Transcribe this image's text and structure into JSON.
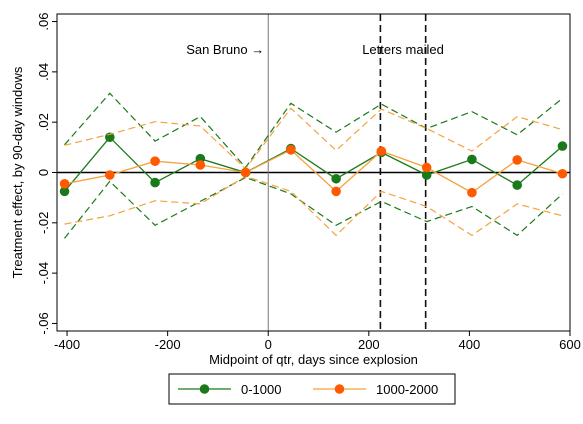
{
  "chart_data": {
    "type": "line",
    "xlabel": "Midpoint of qtr, days since explosion",
    "ylabel": "Treatment effect, by 90-day windows",
    "xlim": [
      -420,
      600
    ],
    "ylim": [
      -0.063,
      0.063
    ],
    "xticks": [
      -400,
      -200,
      0,
      200,
      400,
      600
    ],
    "xtick_labels": [
      "-400",
      "-200",
      "0",
      "200",
      "400",
      "600"
    ],
    "yticks": [
      -0.06,
      -0.04,
      -0.02,
      0,
      0.02,
      0.04,
      0.06
    ],
    "ytick_labels": [
      "-.06",
      "-.04",
      "-.02",
      "0",
      ".02",
      ".04",
      ".06"
    ],
    "grid": false,
    "legend_position": "bottom",
    "colors": {
      "green": "#1a7a1a",
      "orange": "#ff5a00",
      "orange_ci": "#f5a23c"
    },
    "annotations": [
      {
        "label": "San Bruno →",
        "x": 0
      },
      {
        "label": "Letters mailed",
        "x": [
          223,
          313
        ]
      }
    ],
    "series": [
      {
        "name": "0-1000",
        "x": [
          -405,
          -315,
          -225,
          -135,
          -45,
          45,
          135,
          225,
          315,
          405,
          495,
          585
        ],
        "y": [
          -0.0075,
          0.014,
          -0.004,
          0.0055,
          0.0,
          0.0095,
          -0.0025,
          0.008,
          -0.001,
          0.0052,
          -0.005,
          0.0105
        ],
        "ci_upper": [
          0.011,
          0.0315,
          0.0125,
          0.0222,
          0.002,
          0.0275,
          0.016,
          0.0272,
          0.0175,
          0.0242,
          0.015,
          0.0295
        ],
        "ci_lower": [
          -0.0262,
          -0.0035,
          -0.021,
          -0.0115,
          -0.002,
          -0.0085,
          -0.021,
          -0.0115,
          -0.0195,
          -0.0135,
          -0.025,
          -0.0085
        ]
      },
      {
        "name": "1000-2000",
        "x": [
          -405,
          -315,
          -225,
          -135,
          -45,
          45,
          135,
          225,
          315,
          405,
          495,
          585
        ],
        "y": [
          -0.0045,
          -0.001,
          0.0045,
          0.003,
          0.0,
          0.009,
          -0.0075,
          0.0085,
          0.002,
          -0.008,
          0.005,
          -0.0005
        ],
        "ci_upper": [
          0.0108,
          0.0152,
          0.0202,
          0.0185,
          0.0015,
          0.0255,
          0.0088,
          0.0252,
          0.0175,
          0.0085,
          0.0222,
          0.017
        ],
        "ci_lower": [
          -0.0205,
          -0.0172,
          -0.0112,
          -0.0125,
          -0.0015,
          -0.0075,
          -0.025,
          -0.0075,
          -0.0135,
          -0.025,
          -0.0125,
          -0.0172
        ]
      }
    ]
  }
}
